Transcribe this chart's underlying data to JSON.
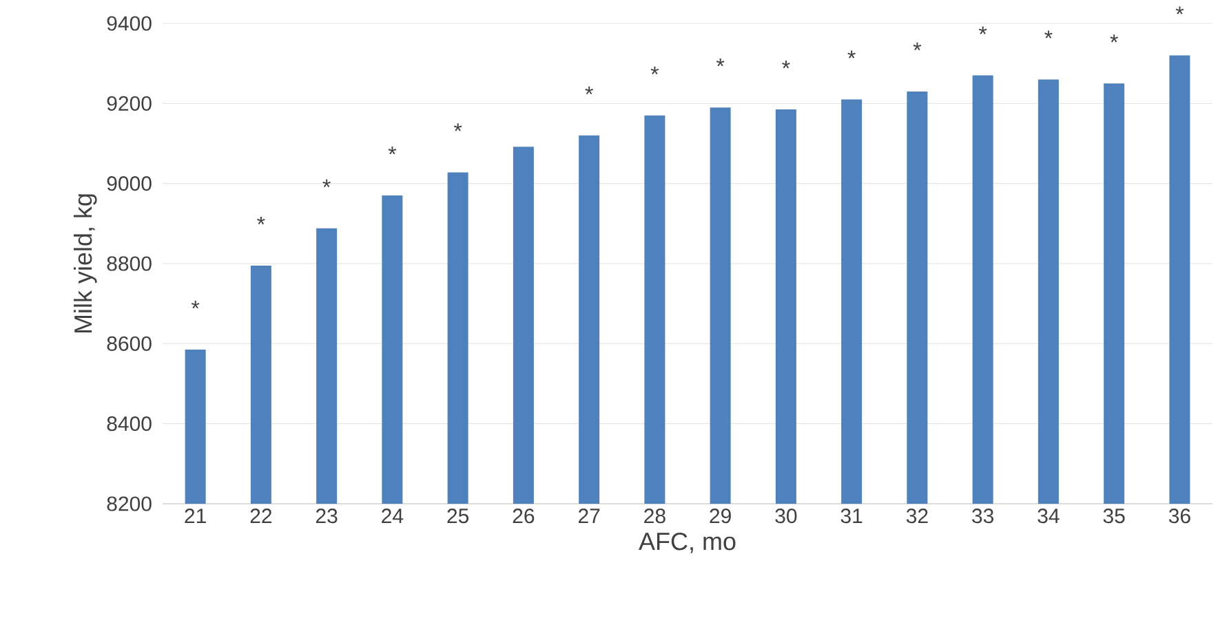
{
  "chart_data": {
    "type": "bar",
    "xlabel": "AFC, mo",
    "ylabel": "Milk yield, kg",
    "categories": [
      "21",
      "22",
      "23",
      "24",
      "25",
      "26",
      "27",
      "28",
      "29",
      "30",
      "31",
      "32",
      "33",
      "34",
      "35",
      "36"
    ],
    "values": [
      8585,
      8795,
      8888,
      8970,
      9028,
      9092,
      9120,
      9170,
      9190,
      9185,
      9210,
      9230,
      9270,
      9260,
      9250,
      9320
    ],
    "color": "#4f81bd",
    "ylim": [
      8200,
      9400
    ],
    "yticks": [
      8200,
      8400,
      8600,
      8800,
      9000,
      9200,
      9400
    ],
    "grid": "y",
    "value_labels": [
      "*",
      "*",
      "*",
      "*",
      "*",
      null,
      "*",
      "*",
      "*",
      "*",
      "*",
      "*",
      "*",
      "*",
      "*",
      "*"
    ]
  }
}
